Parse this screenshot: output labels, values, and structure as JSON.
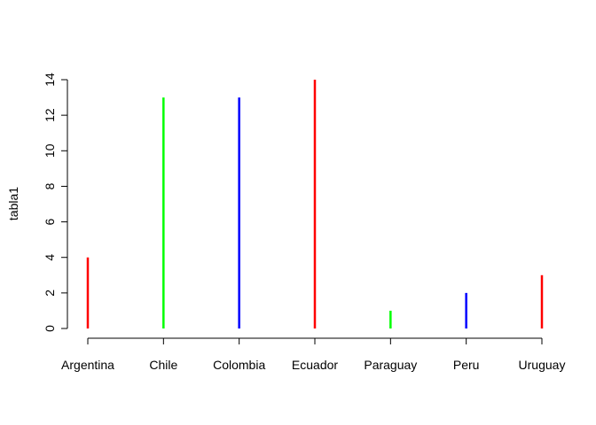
{
  "chart_data": {
    "type": "bar",
    "title": "",
    "xlabel": "",
    "ylabel": "tabla1",
    "ylim": [
      0,
      14
    ],
    "yticks": [
      0,
      2,
      4,
      6,
      8,
      10,
      12,
      14
    ],
    "grid": false,
    "legend": "none",
    "categories": [
      "Argentina",
      "Chile",
      "Colombia",
      "Ecuador",
      "Paraguay",
      "Peru",
      "Uruguay"
    ],
    "values": [
      4,
      13,
      13,
      14,
      1,
      2,
      3
    ],
    "colors": [
      "#ff0000",
      "#00ff00",
      "#0000ff",
      "#ff0000",
      "#00ff00",
      "#0000ff",
      "#ff0000"
    ]
  }
}
